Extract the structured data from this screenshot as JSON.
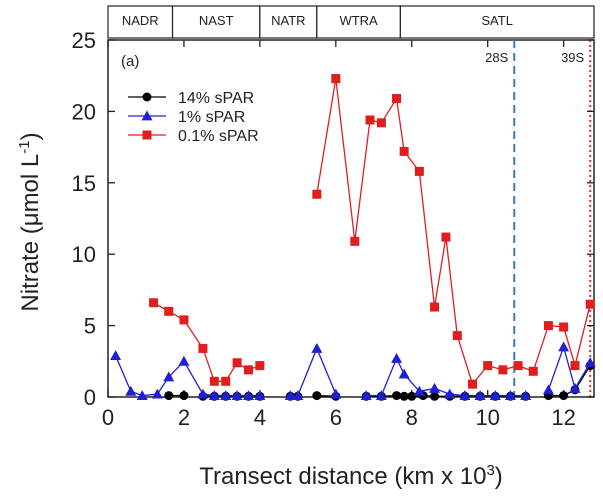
{
  "chart_data": {
    "type": "line",
    "panel_label": "(a)",
    "xlabel_main": "Transect distance (km x 10",
    "xlabel_sup": "3",
    "xlabel_end": ")",
    "ylabel_main": "Nitrate (μmol L",
    "ylabel_sup": "-1",
    "ylabel_end": ")",
    "xlim": [
      0,
      12.8
    ],
    "ylim": [
      0,
      25
    ],
    "xticks": [
      0,
      2,
      4,
      6,
      8,
      10,
      12
    ],
    "yticks": [
      0,
      5,
      10,
      15,
      20,
      25
    ],
    "grid": false,
    "legend_position": "top-left",
    "regions": [
      {
        "label": "NADR",
        "start": 0,
        "end": 1.7
      },
      {
        "label": "NAST",
        "start": 1.7,
        "end": 4.0
      },
      {
        "label": "NATR",
        "start": 4.0,
        "end": 5.5
      },
      {
        "label": "WTRA",
        "start": 5.5,
        "end": 7.7
      },
      {
        "label": "SATL",
        "start": 7.7,
        "end": 12.8
      }
    ],
    "markers": [
      {
        "label": "28S",
        "x": 10.7,
        "color": "#3d7ac4",
        "style": "dashed"
      },
      {
        "label": "39S",
        "x": 12.7,
        "color": "#e03030",
        "style": "dotted"
      }
    ],
    "series": [
      {
        "name": "14% sPAR",
        "color": "#000000",
        "marker": "circle",
        "segments": [
          [
            [
              1.6,
              0.1
            ],
            [
              2.0,
              0.1
            ]
          ],
          [
            [
              2.5,
              0.05
            ],
            [
              2.8,
              0.05
            ],
            [
              3.1,
              0.05
            ],
            [
              3.4,
              0.05
            ],
            [
              3.7,
              0.05
            ],
            [
              4.0,
              0.05
            ]
          ],
          [
            [
              4.8,
              0.05
            ],
            [
              5.0,
              0.05
            ]
          ],
          [
            [
              5.5,
              0.1
            ],
            [
              6.0,
              0.05
            ]
          ],
          [
            [
              6.8,
              0.05
            ],
            [
              7.2,
              0.05
            ],
            [
              7.6,
              0.1
            ],
            [
              7.8,
              0.05
            ],
            [
              8.0,
              0.05
            ],
            [
              8.3,
              0.1
            ],
            [
              8.6,
              0.05
            ],
            [
              9.0,
              0.05
            ],
            [
              9.4,
              0.05
            ],
            [
              9.8,
              0.05
            ],
            [
              10.2,
              0.05
            ],
            [
              10.6,
              0.05
            ],
            [
              11.0,
              0.05
            ]
          ],
          [
            [
              11.6,
              0.1
            ],
            [
              12.0,
              0.1
            ],
            [
              12.3,
              0.5
            ],
            [
              12.7,
              2.2
            ]
          ]
        ]
      },
      {
        "name": "1% sPAR",
        "color": "#1f1fd6",
        "marker": "triangle",
        "segments": [
          [
            [
              0.2,
              2.9
            ],
            [
              0.6,
              0.4
            ],
            [
              0.9,
              0.1
            ],
            [
              1.3,
              0.2
            ],
            [
              1.6,
              1.4
            ],
            [
              2.0,
              2.5
            ],
            [
              2.5,
              0.2
            ],
            [
              2.8,
              0.1
            ],
            [
              3.1,
              0.1
            ],
            [
              3.4,
              0.1
            ],
            [
              3.7,
              0.1
            ],
            [
              4.0,
              0.1
            ]
          ],
          [
            [
              4.8,
              0.1
            ],
            [
              5.0,
              0.1
            ],
            [
              5.5,
              3.4
            ],
            [
              6.0,
              0.2
            ]
          ],
          [
            [
              6.8,
              0.1
            ],
            [
              7.2,
              0.1
            ],
            [
              7.6,
              2.7
            ],
            [
              7.8,
              1.6
            ],
            [
              8.2,
              0.4
            ],
            [
              8.6,
              0.6
            ],
            [
              9.0,
              0.2
            ],
            [
              9.4,
              0.1
            ],
            [
              9.8,
              0.1
            ],
            [
              10.2,
              0.1
            ],
            [
              10.6,
              0.1
            ],
            [
              11.0,
              0.1
            ]
          ],
          [
            [
              11.6,
              0.5
            ],
            [
              12.0,
              3.5
            ],
            [
              12.3,
              0.6
            ],
            [
              12.7,
              2.4
            ]
          ]
        ]
      },
      {
        "name": "0.1% sPAR",
        "color": "#e01e1e",
        "marker": "square",
        "segments": [
          [
            [
              1.2,
              6.6
            ],
            [
              1.6,
              6.0
            ],
            [
              2.0,
              5.4
            ],
            [
              2.5,
              3.4
            ],
            [
              2.8,
              1.1
            ],
            [
              3.1,
              1.1
            ],
            [
              3.4,
              2.4
            ],
            [
              3.7,
              1.9
            ],
            [
              4.0,
              2.2
            ]
          ],
          [
            [
              5.5,
              14.2
            ],
            [
              6.0,
              22.3
            ],
            [
              6.5,
              10.9
            ],
            [
              6.9,
              19.4
            ],
            [
              7.2,
              19.2
            ],
            [
              7.6,
              20.9
            ],
            [
              7.8,
              17.2
            ],
            [
              8.2,
              15.8
            ],
            [
              8.6,
              6.3
            ],
            [
              8.9,
              11.2
            ],
            [
              9.2,
              4.3
            ],
            [
              9.6,
              0.9
            ],
            [
              10.0,
              2.2
            ],
            [
              10.4,
              1.9
            ],
            [
              10.8,
              2.2
            ],
            [
              11.2,
              1.8
            ],
            [
              11.6,
              5.0
            ],
            [
              12.0,
              4.9
            ],
            [
              12.3,
              2.2
            ],
            [
              12.7,
              6.5
            ]
          ]
        ]
      }
    ]
  }
}
